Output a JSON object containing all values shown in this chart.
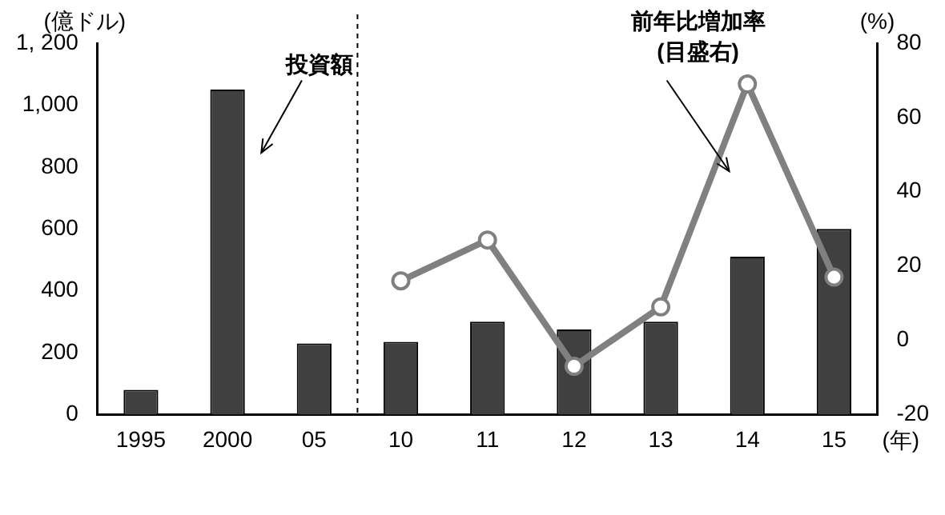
{
  "chart_data": {
    "type": "bar",
    "categories": [
      "1995",
      "2000",
      "05",
      "10",
      "11",
      "12",
      "13",
      "14",
      "15"
    ],
    "ylabel": "(億ドル)",
    "y2label": "(%)",
    "xlabel": "(年)",
    "series": [
      {
        "color": "#404040",
        "values": [
          80,
          1050,
          230,
          235,
          300,
          275,
          300,
          510,
          600
        ]
      },
      {
        "type": "line",
        "axis": "y2",
        "color": "#808080",
        "marker": "circle",
        "values": [
          null,
          null,
          null,
          16,
          27,
          -7,
          9,
          69,
          17
        ]
      }
    ],
    "ylim": [
      0,
      1200
    ],
    "yticks": [
      0,
      200,
      400,
      600,
      800,
      {
        "value": 1000,
        "label": "1,000"
      },
      {
        "value": 1200,
        "label": "1, 200"
      }
    ],
    "y2lim": [
      -20,
      80
    ],
    "y2ticks": [
      -20,
      0,
      20,
      40,
      60,
      80
    ],
    "annotations": [
      "投資額",
      "前年比増加率\n(目盛右)"
    ],
    "grid": false,
    "legend": false
  }
}
